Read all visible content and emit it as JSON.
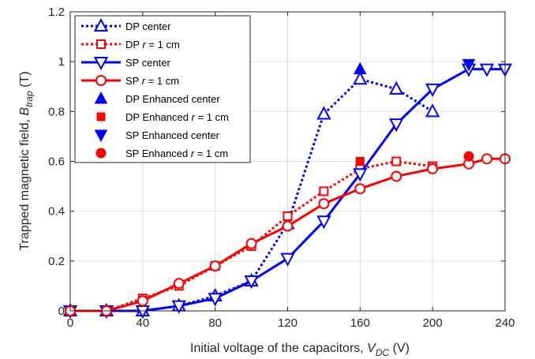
{
  "chart_data": {
    "type": "line",
    "xlabel": {
      "main": "Initial voltage of the capacitors, ",
      "var": "V",
      "sub": "DC",
      "unit": "  (V)"
    },
    "ylabel": {
      "main": "Trapped magnetic field, ",
      "var": "B",
      "sub": "trap",
      "unit": " (T)"
    },
    "xlim": [
      0,
      240
    ],
    "ylim": [
      0,
      1.2
    ],
    "xticks": [
      "0",
      "40",
      "80",
      "120",
      "160",
      "200",
      "240"
    ],
    "yticks": [
      "0",
      "0.2",
      "0.4",
      "0.6",
      "0.8",
      "1",
      "1.2"
    ],
    "grid": true,
    "legend_position": "top-left",
    "series": [
      {
        "name": "DP center",
        "name_parts": [
          "DP center"
        ],
        "color": "#0000ff",
        "style": "dotted",
        "marker": "triangle-up",
        "filled": false,
        "x": [
          0,
          20,
          40,
          60,
          80,
          100,
          120,
          140,
          160,
          180,
          200
        ],
        "y": [
          0.0,
          0.0,
          0.0,
          0.02,
          0.06,
          0.12,
          0.35,
          0.79,
          0.93,
          0.89,
          0.8
        ]
      },
      {
        "name": "DP r = 1 cm",
        "name_parts": [
          "DP ",
          "r",
          " = 1 cm"
        ],
        "color": "#ff0000",
        "style": "dotted",
        "marker": "square",
        "filled": false,
        "x": [
          0,
          20,
          40,
          60,
          80,
          100,
          120,
          140,
          160,
          180,
          200
        ],
        "y": [
          0.0,
          0.0,
          0.05,
          0.1,
          0.18,
          0.26,
          0.38,
          0.48,
          0.57,
          0.6,
          0.58
        ]
      },
      {
        "name": "SP center",
        "name_parts": [
          "SP center"
        ],
        "color": "#0000ff",
        "style": "solid",
        "marker": "triangle-down",
        "filled": false,
        "x": [
          0,
          20,
          40,
          60,
          80,
          100,
          120,
          140,
          160,
          180,
          200,
          220,
          230,
          240
        ],
        "y": [
          0.0,
          0.0,
          0.0,
          0.02,
          0.05,
          0.12,
          0.21,
          0.36,
          0.55,
          0.75,
          0.89,
          0.97,
          0.97,
          0.97
        ]
      },
      {
        "name": "SP r = 1 cm",
        "name_parts": [
          "SP ",
          "r",
          " = 1 cm"
        ],
        "color": "#ff0000",
        "style": "solid",
        "marker": "circle",
        "filled": false,
        "x": [
          0,
          20,
          40,
          60,
          80,
          100,
          120,
          140,
          160,
          180,
          200,
          220,
          230,
          240
        ],
        "y": [
          0.0,
          0.0,
          0.04,
          0.11,
          0.18,
          0.27,
          0.34,
          0.43,
          0.49,
          0.54,
          0.57,
          0.59,
          0.61,
          0.61
        ]
      },
      {
        "name": "DP Enhanced center",
        "name_parts": [
          "DP Enhanced center"
        ],
        "color": "#0000ff",
        "style": "none",
        "marker": "triangle-up",
        "filled": true,
        "x": [
          160
        ],
        "y": [
          0.97
        ]
      },
      {
        "name": "DP Enhanced r = 1 cm",
        "name_parts": [
          "DP Enhanced ",
          "r",
          " = 1 cm"
        ],
        "color": "#ff0000",
        "style": "none",
        "marker": "square",
        "filled": true,
        "x": [
          160
        ],
        "y": [
          0.6
        ]
      },
      {
        "name": "SP Enhanced  center",
        "name_parts": [
          "SP Enhanced  center"
        ],
        "color": "#0000ff",
        "style": "none",
        "marker": "triangle-down",
        "filled": true,
        "x": [
          220
        ],
        "y": [
          0.99
        ]
      },
      {
        "name": "SP Enhanced r = 1 cm",
        "name_parts": [
          "SP Enhanced ",
          "r",
          " = 1 cm"
        ],
        "color": "#ff0000",
        "style": "none",
        "marker": "circle",
        "filled": true,
        "x": [
          220
        ],
        "y": [
          0.62
        ]
      }
    ]
  }
}
